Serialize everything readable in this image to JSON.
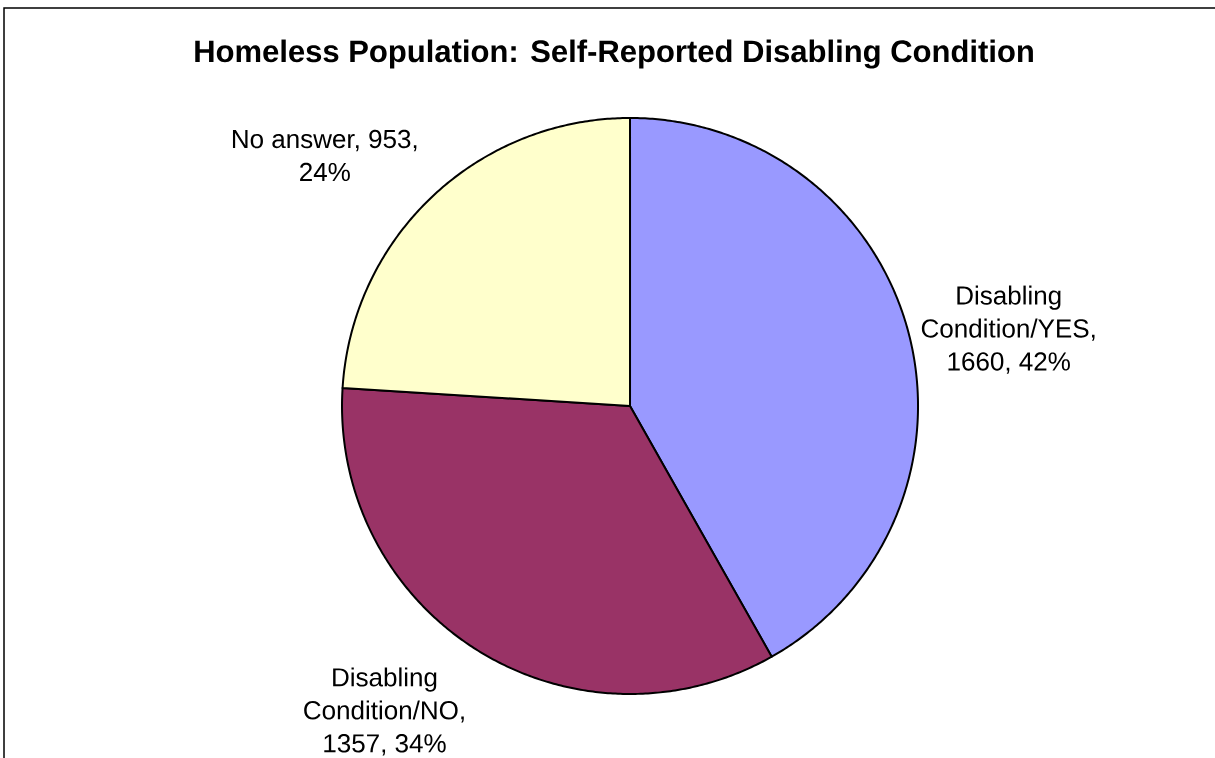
{
  "chart_data": {
    "type": "pie",
    "title": "Homeless Population: Self-Reported Disabling Condition",
    "categories": [
      null,
      null,
      null
    ],
    "values": [
      1660,
      1357,
      953
    ],
    "colors": [
      "#9999ff",
      "#993366",
      "#ffffcc"
    ],
    "value_labels": [
      "Disabling Condition/YES, 1660, 42%",
      "Disabling Condition/NO, 1357, 34%",
      "No answer, 953, 24%"
    ]
  }
}
